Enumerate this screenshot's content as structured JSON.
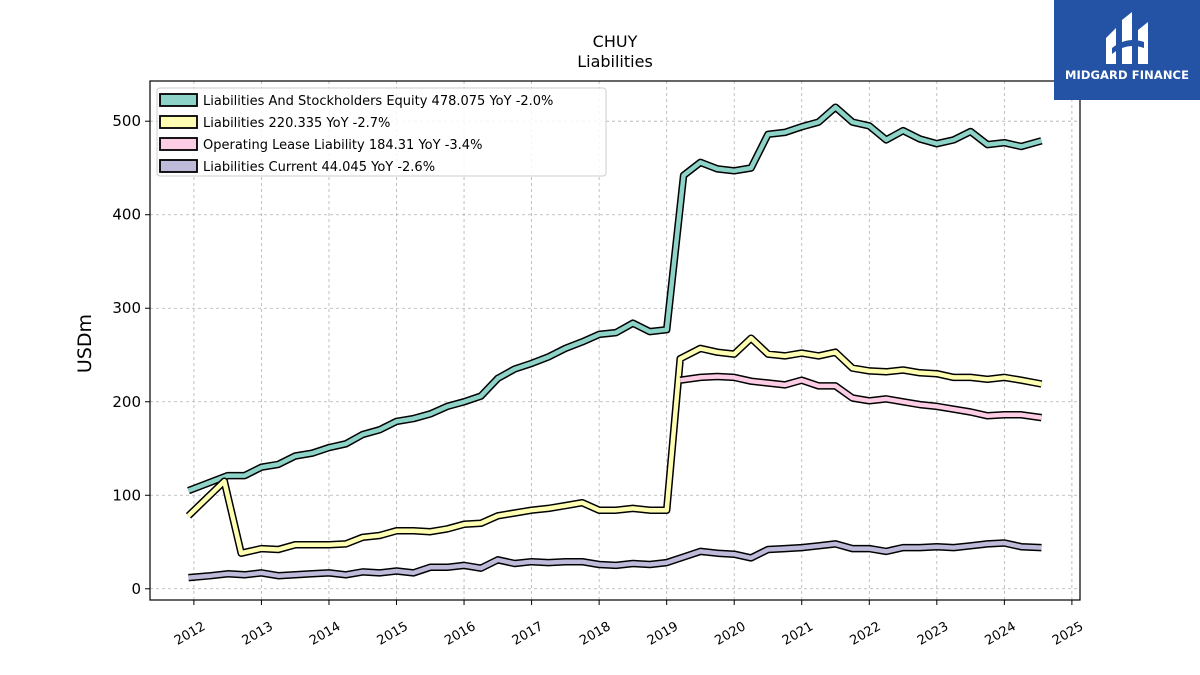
{
  "logo": {
    "brand": "MIDGARD FINANCE",
    "icon": "midgard-logo-icon",
    "color": "#2453a6"
  },
  "chart_data": {
    "type": "line",
    "title": "CHUY",
    "subtitle": "Liabilities",
    "ylabel": "USDm",
    "xlabel": "",
    "ylim": [
      -12,
      543
    ],
    "xlim": [
      2011.35,
      2025.12
    ],
    "yticks": [
      0,
      100,
      200,
      300,
      400,
      500
    ],
    "xticks": [
      "2012",
      "2013",
      "2014",
      "2015",
      "2016",
      "2017",
      "2018",
      "2019",
      "2020",
      "2021",
      "2022",
      "2023",
      "2024",
      "2025"
    ],
    "grid": true,
    "legend_position": "top-left",
    "series": [
      {
        "name": "Liabilities And Stockholders Equity",
        "legend_label": "Liabilities And Stockholders Equity  478.075 YoY -2.0%",
        "color": "#8dd3c7",
        "points": [
          [
            2011.92,
            105
          ],
          [
            2012.5,
            121
          ],
          [
            2012.75,
            121
          ],
          [
            2013.0,
            130
          ],
          [
            2013.25,
            133
          ],
          [
            2013.5,
            142
          ],
          [
            2013.75,
            145
          ],
          [
            2014.0,
            151
          ],
          [
            2014.25,
            155
          ],
          [
            2014.5,
            165
          ],
          [
            2014.75,
            170
          ],
          [
            2015.0,
            179
          ],
          [
            2015.25,
            182
          ],
          [
            2015.5,
            187
          ],
          [
            2015.75,
            195
          ],
          [
            2016.0,
            200
          ],
          [
            2016.25,
            206
          ],
          [
            2016.5,
            225
          ],
          [
            2016.75,
            235
          ],
          [
            2017.0,
            241
          ],
          [
            2017.25,
            248
          ],
          [
            2017.5,
            257
          ],
          [
            2017.75,
            264
          ],
          [
            2018.0,
            272
          ],
          [
            2018.25,
            274
          ],
          [
            2018.5,
            284
          ],
          [
            2018.75,
            275
          ],
          [
            2019.0,
            277
          ],
          [
            2019.25,
            442
          ],
          [
            2019.5,
            456
          ],
          [
            2019.75,
            449
          ],
          [
            2020.0,
            447
          ],
          [
            2020.25,
            450
          ],
          [
            2020.5,
            486
          ],
          [
            2020.75,
            488
          ],
          [
            2021.0,
            494
          ],
          [
            2021.25,
            499
          ],
          [
            2021.5,
            515
          ],
          [
            2021.75,
            499
          ],
          [
            2022.0,
            495
          ],
          [
            2022.25,
            480
          ],
          [
            2022.5,
            490
          ],
          [
            2022.75,
            481
          ],
          [
            2023.0,
            476
          ],
          [
            2023.25,
            480
          ],
          [
            2023.5,
            489
          ],
          [
            2023.75,
            475
          ],
          [
            2024.0,
            477
          ],
          [
            2024.25,
            473
          ],
          [
            2024.55,
            479
          ]
        ]
      },
      {
        "name": "Liabilities",
        "legend_label": "Liabilities  220.335 YoY -2.7%",
        "color": "#ffffb3",
        "points": [
          [
            2011.92,
            78
          ],
          [
            2012.45,
            115
          ],
          [
            2012.7,
            38
          ],
          [
            2013.0,
            43
          ],
          [
            2013.25,
            42
          ],
          [
            2013.5,
            47
          ],
          [
            2013.75,
            47
          ],
          [
            2014.0,
            47
          ],
          [
            2014.25,
            48
          ],
          [
            2014.5,
            55
          ],
          [
            2014.75,
            57
          ],
          [
            2015.0,
            62
          ],
          [
            2015.25,
            62
          ],
          [
            2015.5,
            61
          ],
          [
            2015.75,
            64
          ],
          [
            2016.0,
            69
          ],
          [
            2016.25,
            70
          ],
          [
            2016.5,
            78
          ],
          [
            2016.75,
            81
          ],
          [
            2017.0,
            84
          ],
          [
            2017.25,
            86
          ],
          [
            2017.5,
            89
          ],
          [
            2017.75,
            92
          ],
          [
            2018.0,
            84
          ],
          [
            2018.25,
            84
          ],
          [
            2018.5,
            86
          ],
          [
            2018.75,
            84
          ],
          [
            2019.0,
            84
          ],
          [
            2019.2,
            246
          ],
          [
            2019.5,
            257
          ],
          [
            2019.75,
            253
          ],
          [
            2020.0,
            251
          ],
          [
            2020.25,
            268
          ],
          [
            2020.5,
            251
          ],
          [
            2020.75,
            249
          ],
          [
            2021.0,
            252
          ],
          [
            2021.25,
            249
          ],
          [
            2021.5,
            253
          ],
          [
            2021.75,
            236
          ],
          [
            2022.0,
            233
          ],
          [
            2022.25,
            232
          ],
          [
            2022.5,
            234
          ],
          [
            2022.75,
            231
          ],
          [
            2023.0,
            230
          ],
          [
            2023.25,
            226
          ],
          [
            2023.5,
            226
          ],
          [
            2023.75,
            224
          ],
          [
            2024.0,
            226
          ],
          [
            2024.25,
            223
          ],
          [
            2024.55,
            219
          ]
        ]
      },
      {
        "name": "Operating Lease Liability",
        "legend_label": "Operating Lease Liability  184.31 YoY -3.4%",
        "color": "#fccde5",
        "points": [
          [
            2019.2,
            223
          ],
          [
            2019.5,
            226
          ],
          [
            2019.75,
            227
          ],
          [
            2020.0,
            226
          ],
          [
            2020.25,
            222
          ],
          [
            2020.5,
            220
          ],
          [
            2020.75,
            218
          ],
          [
            2021.0,
            223
          ],
          [
            2021.25,
            217
          ],
          [
            2021.5,
            217
          ],
          [
            2021.75,
            204
          ],
          [
            2022.0,
            201
          ],
          [
            2022.25,
            203
          ],
          [
            2022.5,
            200
          ],
          [
            2022.75,
            197
          ],
          [
            2023.0,
            195
          ],
          [
            2023.25,
            192
          ],
          [
            2023.5,
            189
          ],
          [
            2023.75,
            185
          ],
          [
            2024.0,
            186
          ],
          [
            2024.25,
            186
          ],
          [
            2024.55,
            183
          ]
        ]
      },
      {
        "name": "Liabilities Current",
        "legend_label": "Liabilities Current  44.045 YoY -2.6%",
        "color": "#bebada",
        "points": [
          [
            2011.92,
            12
          ],
          [
            2012.25,
            14
          ],
          [
            2012.5,
            16
          ],
          [
            2012.75,
            15
          ],
          [
            2013.0,
            17
          ],
          [
            2013.25,
            14
          ],
          [
            2013.5,
            15
          ],
          [
            2013.75,
            16
          ],
          [
            2014.0,
            17
          ],
          [
            2014.25,
            15
          ],
          [
            2014.5,
            18
          ],
          [
            2014.75,
            17
          ],
          [
            2015.0,
            19
          ],
          [
            2015.25,
            17
          ],
          [
            2015.5,
            23
          ],
          [
            2015.75,
            23
          ],
          [
            2016.0,
            25
          ],
          [
            2016.25,
            22
          ],
          [
            2016.5,
            31
          ],
          [
            2016.75,
            27
          ],
          [
            2017.0,
            29
          ],
          [
            2017.25,
            28
          ],
          [
            2017.5,
            29
          ],
          [
            2017.75,
            29
          ],
          [
            2018.0,
            26
          ],
          [
            2018.25,
            25
          ],
          [
            2018.5,
            27
          ],
          [
            2018.75,
            26
          ],
          [
            2019.0,
            28
          ],
          [
            2019.25,
            34
          ],
          [
            2019.5,
            40
          ],
          [
            2019.75,
            38
          ],
          [
            2020.0,
            37
          ],
          [
            2020.25,
            33
          ],
          [
            2020.5,
            42
          ],
          [
            2020.75,
            43
          ],
          [
            2021.0,
            44
          ],
          [
            2021.25,
            46
          ],
          [
            2021.5,
            48
          ],
          [
            2021.75,
            43
          ],
          [
            2022.0,
            43
          ],
          [
            2022.25,
            40
          ],
          [
            2022.5,
            44
          ],
          [
            2022.75,
            44
          ],
          [
            2023.0,
            45
          ],
          [
            2023.25,
            44
          ],
          [
            2023.5,
            46
          ],
          [
            2023.75,
            48
          ],
          [
            2024.0,
            49
          ],
          [
            2024.25,
            45
          ],
          [
            2024.55,
            44
          ]
        ]
      }
    ]
  }
}
